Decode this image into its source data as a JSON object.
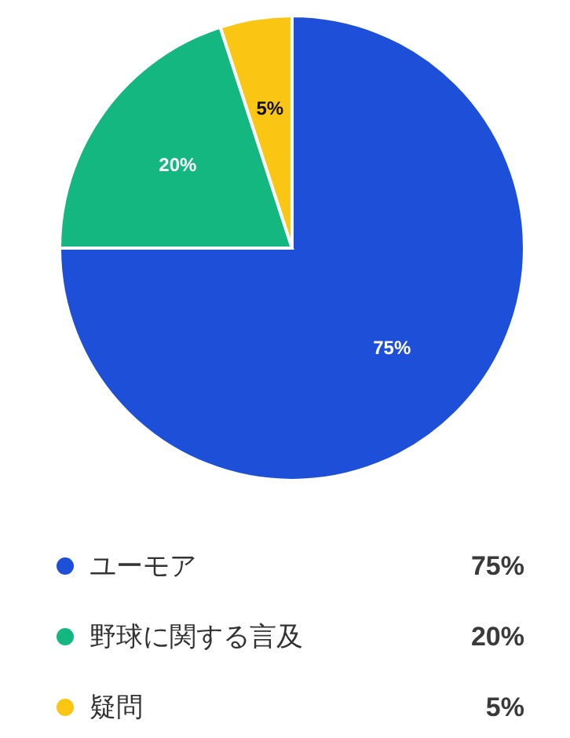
{
  "chart_data": {
    "type": "pie",
    "categories": [
      "ユーモア",
      "野球に関する言及",
      "疑問"
    ],
    "values": [
      75,
      20,
      5
    ],
    "colors": [
      "#1e4fd8",
      "#13b77f",
      "#fbc613"
    ],
    "value_labels": [
      "75%",
      "20%",
      "5%"
    ],
    "legend": "bottom"
  }
}
